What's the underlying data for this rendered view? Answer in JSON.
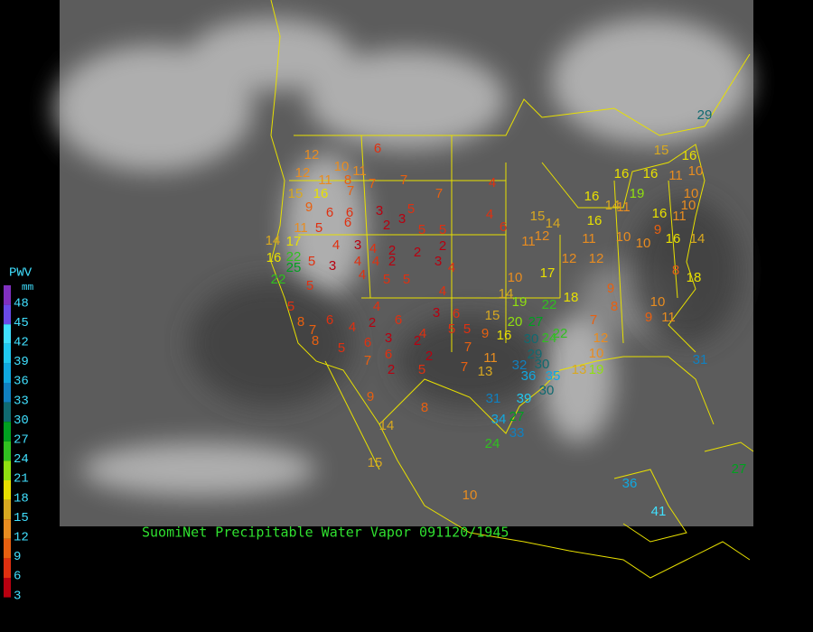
{
  "map": {
    "caption": "SuomiNet Precipitable Water Vapor 091120/1945",
    "legend": {
      "title": "PWV",
      "unit": "mm",
      "levels": [
        {
          "value": 48,
          "color": "#8030c0"
        },
        {
          "value": 45,
          "color": "#6a4ae8"
        },
        {
          "value": 42,
          "color": "#40e0ff"
        },
        {
          "value": 39,
          "color": "#20c8f0"
        },
        {
          "value": 36,
          "color": "#10a8e0"
        },
        {
          "value": 33,
          "color": "#1080c0"
        },
        {
          "value": 30,
          "color": "#106a70"
        },
        {
          "value": 27,
          "color": "#00a020"
        },
        {
          "value": 24,
          "color": "#30c020"
        },
        {
          "value": 21,
          "color": "#90e010"
        },
        {
          "value": 18,
          "color": "#e8e000"
        },
        {
          "value": 15,
          "color": "#d8a820"
        },
        {
          "value": 12,
          "color": "#e88c20"
        },
        {
          "value": 9,
          "color": "#e86010"
        },
        {
          "value": 6,
          "color": "#e03010"
        },
        {
          "value": 3,
          "color": "#b80010"
        }
      ]
    },
    "stations": [
      6,
      12,
      10,
      11,
      12,
      11,
      8,
      7,
      7,
      7,
      4,
      15,
      16,
      7,
      9,
      6,
      6,
      3,
      5,
      3,
      2,
      6,
      5,
      5,
      4,
      6,
      11,
      5,
      14,
      17,
      4,
      3,
      4,
      2,
      2,
      2,
      4,
      2,
      4,
      3,
      4,
      5,
      3,
      4,
      5,
      5,
      4,
      16,
      22,
      25,
      22,
      5,
      4,
      3,
      6,
      5,
      8,
      6,
      4,
      2,
      6,
      7,
      8,
      5,
      6,
      3,
      2,
      4,
      5,
      5,
      2,
      7,
      7,
      6,
      5,
      2,
      7,
      15,
      9,
      16,
      20,
      27,
      30,
      24,
      29,
      11,
      13,
      32,
      30,
      36,
      35,
      30,
      31,
      39,
      34,
      27,
      33,
      24,
      9,
      8,
      14,
      15,
      10,
      19,
      10,
      17,
      14,
      22,
      18,
      22,
      12,
      10,
      19,
      13,
      12,
      12,
      11,
      12,
      11,
      10,
      10,
      16,
      14,
      8,
      18,
      10,
      9,
      11,
      9,
      8,
      7,
      15,
      14,
      16,
      11,
      16,
      14,
      19,
      11,
      10,
      16,
      9,
      10,
      16,
      16,
      15,
      11,
      16,
      10,
      29,
      36,
      41,
      31,
      27
    ]
  }
}
